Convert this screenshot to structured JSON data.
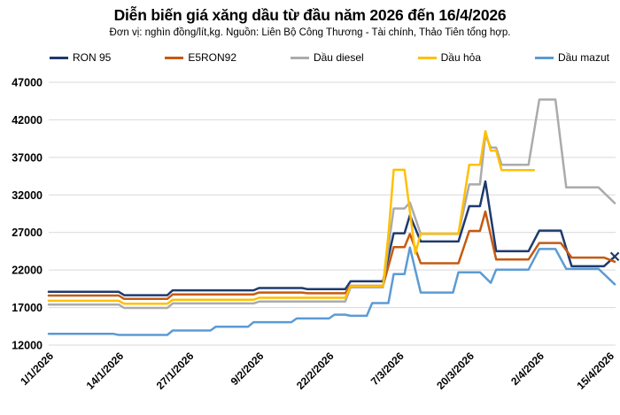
{
  "chart_data": {
    "type": "line",
    "title": "Diễn biến giá xăng dầu từ đầu năm 2026 đến 16/4/2026",
    "subtitle": "Đơn vị: nghìn đồng/lít,kg. Nguồn: Liên Bộ Công Thương - Tài chính, Thảo Tiên tổng hợp.",
    "unit": "nghìn đồng/lít,kg",
    "source": "Liên Bộ Công Thương - Tài chính, Thảo Tiên tổng hợp",
    "legend_position": "top",
    "grid": true,
    "grid_color": "#d9d9d9",
    "x_axis": {
      "label_rotation_deg": -45,
      "tick_days": [
        0,
        13,
        26,
        39,
        52,
        65,
        78,
        91,
        104
      ],
      "tick_labels": [
        "1/1/2026",
        "14/1/2026",
        "27/1/2026",
        "9/2/2026",
        "22/2/2026",
        "7/3/2026",
        "20/3/2026",
        "2/4/2026",
        "15/4/2026"
      ],
      "day_range": [
        0,
        105
      ]
    },
    "y_axis": {
      "min": 12000,
      "max": 47000,
      "step": 5000,
      "ticks": [
        12000,
        17000,
        22000,
        27000,
        32000,
        37000,
        42000,
        47000
      ]
    },
    "series": [
      {
        "name": "RON 95",
        "slug": "ron-95",
        "color": "#1e3a6e",
        "end_marker": "x",
        "points": [
          [
            0,
            19100
          ],
          [
            13,
            19100
          ],
          [
            14,
            18650
          ],
          [
            22,
            18650
          ],
          [
            23,
            19300
          ],
          [
            38,
            19300
          ],
          [
            39,
            19600
          ],
          [
            47,
            19600
          ],
          [
            48,
            19450
          ],
          [
            55,
            19450
          ],
          [
            56,
            20500
          ],
          [
            62,
            20500
          ],
          [
            64,
            26900
          ],
          [
            66,
            26900
          ],
          [
            67,
            29300
          ],
          [
            69,
            25800
          ],
          [
            76,
            25800
          ],
          [
            78,
            30500
          ],
          [
            80,
            30500
          ],
          [
            81,
            33800
          ],
          [
            83,
            24500
          ],
          [
            89,
            24500
          ],
          [
            91,
            27250
          ],
          [
            95,
            27250
          ],
          [
            97,
            22500
          ],
          [
            103,
            22500
          ],
          [
            105,
            23800
          ]
        ]
      },
      {
        "name": "E5RON92",
        "slug": "e5ron92",
        "color": "#c55a11",
        "end_marker": "none",
        "points": [
          [
            0,
            18600
          ],
          [
            13,
            18600
          ],
          [
            14,
            18150
          ],
          [
            22,
            18150
          ],
          [
            23,
            18750
          ],
          [
            38,
            18750
          ],
          [
            39,
            19000
          ],
          [
            47,
            19000
          ],
          [
            48,
            18900
          ],
          [
            55,
            18900
          ],
          [
            56,
            19900
          ],
          [
            62,
            19900
          ],
          [
            64,
            25050
          ],
          [
            66,
            25050
          ],
          [
            67,
            26800
          ],
          [
            69,
            22900
          ],
          [
            76,
            22900
          ],
          [
            78,
            27200
          ],
          [
            80,
            27200
          ],
          [
            81,
            29800
          ],
          [
            83,
            23400
          ],
          [
            89,
            23400
          ],
          [
            91,
            25600
          ],
          [
            95,
            25600
          ],
          [
            97,
            23650
          ],
          [
            103,
            23650
          ],
          [
            105,
            23100
          ]
        ]
      },
      {
        "name": "Dầu diesel",
        "slug": "dau-diesel",
        "color": "#ababab",
        "end_marker": "none",
        "points": [
          [
            0,
            17400
          ],
          [
            13,
            17400
          ],
          [
            14,
            16950
          ],
          [
            22,
            16950
          ],
          [
            23,
            17550
          ],
          [
            38,
            17550
          ],
          [
            39,
            17800
          ],
          [
            55,
            17800
          ],
          [
            56,
            19700
          ],
          [
            62,
            19700
          ],
          [
            64,
            30200
          ],
          [
            66,
            30200
          ],
          [
            67,
            31000
          ],
          [
            69,
            26800
          ],
          [
            76,
            26800
          ],
          [
            78,
            33400
          ],
          [
            80,
            33400
          ],
          [
            81,
            40000
          ],
          [
            82,
            38300
          ],
          [
            83,
            38300
          ],
          [
            84,
            36000
          ],
          [
            89,
            36000
          ],
          [
            91,
            44700
          ],
          [
            94,
            44700
          ],
          [
            96,
            33000
          ],
          [
            102,
            33000
          ],
          [
            105,
            30900
          ]
        ]
      },
      {
        "name": "Dầu hỏa",
        "slug": "dau-hoa",
        "color": "#ffc000",
        "end_marker": "none",
        "points": [
          [
            0,
            17900
          ],
          [
            13,
            17900
          ],
          [
            14,
            17500
          ],
          [
            22,
            17500
          ],
          [
            23,
            18050
          ],
          [
            38,
            18050
          ],
          [
            39,
            18300
          ],
          [
            55,
            18300
          ],
          [
            56,
            19850
          ],
          [
            62,
            19850
          ],
          [
            63,
            26700
          ],
          [
            64,
            35350
          ],
          [
            66,
            35350
          ],
          [
            68,
            24200
          ],
          [
            69,
            26850
          ],
          [
            76,
            26850
          ],
          [
            78,
            36000
          ],
          [
            80,
            36000
          ],
          [
            81,
            40500
          ],
          [
            82,
            37900
          ],
          [
            83,
            37900
          ],
          [
            84,
            35300
          ],
          [
            90,
            35300
          ]
        ]
      },
      {
        "name": "Dầu mazut",
        "slug": "dau-mazut",
        "color": "#5b9bd5",
        "end_marker": "none",
        "points": [
          [
            0,
            13500
          ],
          [
            12,
            13500
          ],
          [
            13,
            13350
          ],
          [
            22,
            13350
          ],
          [
            23,
            13950
          ],
          [
            30,
            13950
          ],
          [
            31,
            14450
          ],
          [
            37,
            14450
          ],
          [
            38,
            15050
          ],
          [
            45,
            15050
          ],
          [
            46,
            15550
          ],
          [
            52,
            15550
          ],
          [
            53,
            16050
          ],
          [
            55,
            16050
          ],
          [
            56,
            15900
          ],
          [
            59,
            15900
          ],
          [
            60,
            17600
          ],
          [
            63,
            17600
          ],
          [
            64,
            21450
          ],
          [
            66,
            21450
          ],
          [
            67,
            25000
          ],
          [
            69,
            19000
          ],
          [
            75,
            19000
          ],
          [
            76,
            21700
          ],
          [
            80,
            21700
          ],
          [
            82,
            20300
          ],
          [
            83,
            22050
          ],
          [
            89,
            22050
          ],
          [
            91,
            24800
          ],
          [
            94,
            24800
          ],
          [
            96,
            22150
          ],
          [
            102,
            22150
          ],
          [
            105,
            20100
          ]
        ]
      }
    ]
  }
}
